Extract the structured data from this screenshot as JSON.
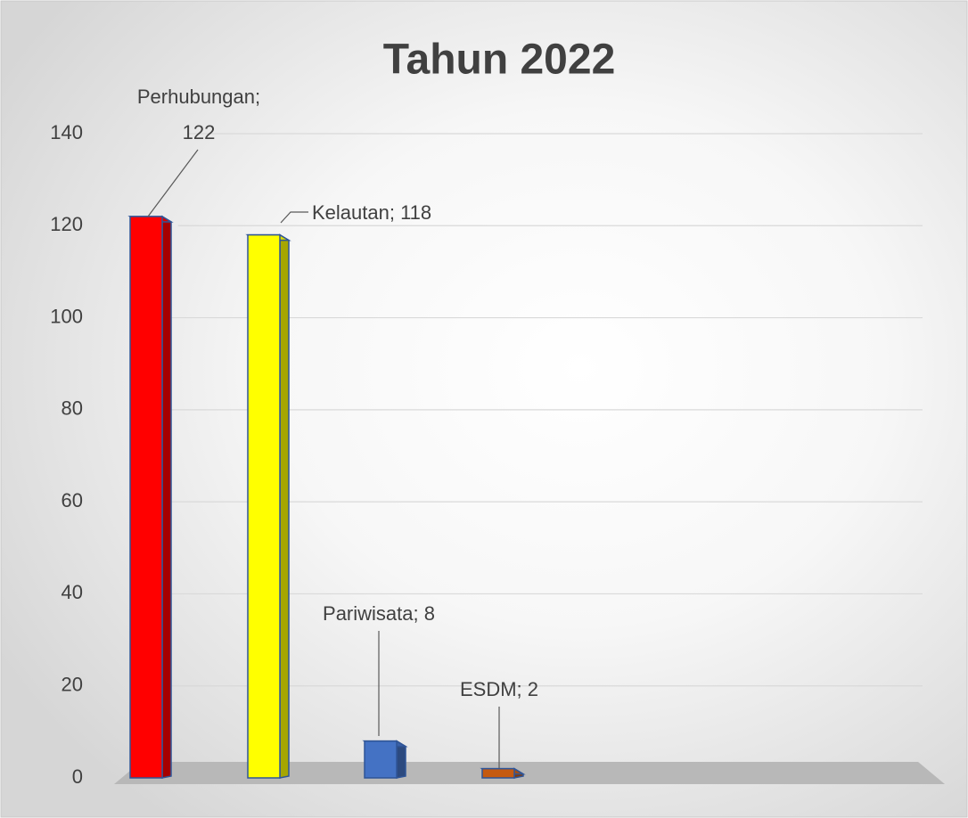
{
  "chart_data": {
    "type": "bar",
    "title": "Tahun 2022",
    "values": [
      122,
      118,
      8,
      2
    ],
    "value_labels": [
      "Perhubungan; 122",
      "Kelautan; 118",
      "Pariwisata; 8",
      "ESDM; 2"
    ],
    "colors": [
      "#ff0000",
      "#ffff00",
      "#4472c4",
      "#c55a11"
    ],
    "ylim": [
      0,
      140
    ],
    "yticks": [
      0,
      20,
      40,
      60,
      80,
      100,
      120,
      140
    ],
    "grid": true
  }
}
